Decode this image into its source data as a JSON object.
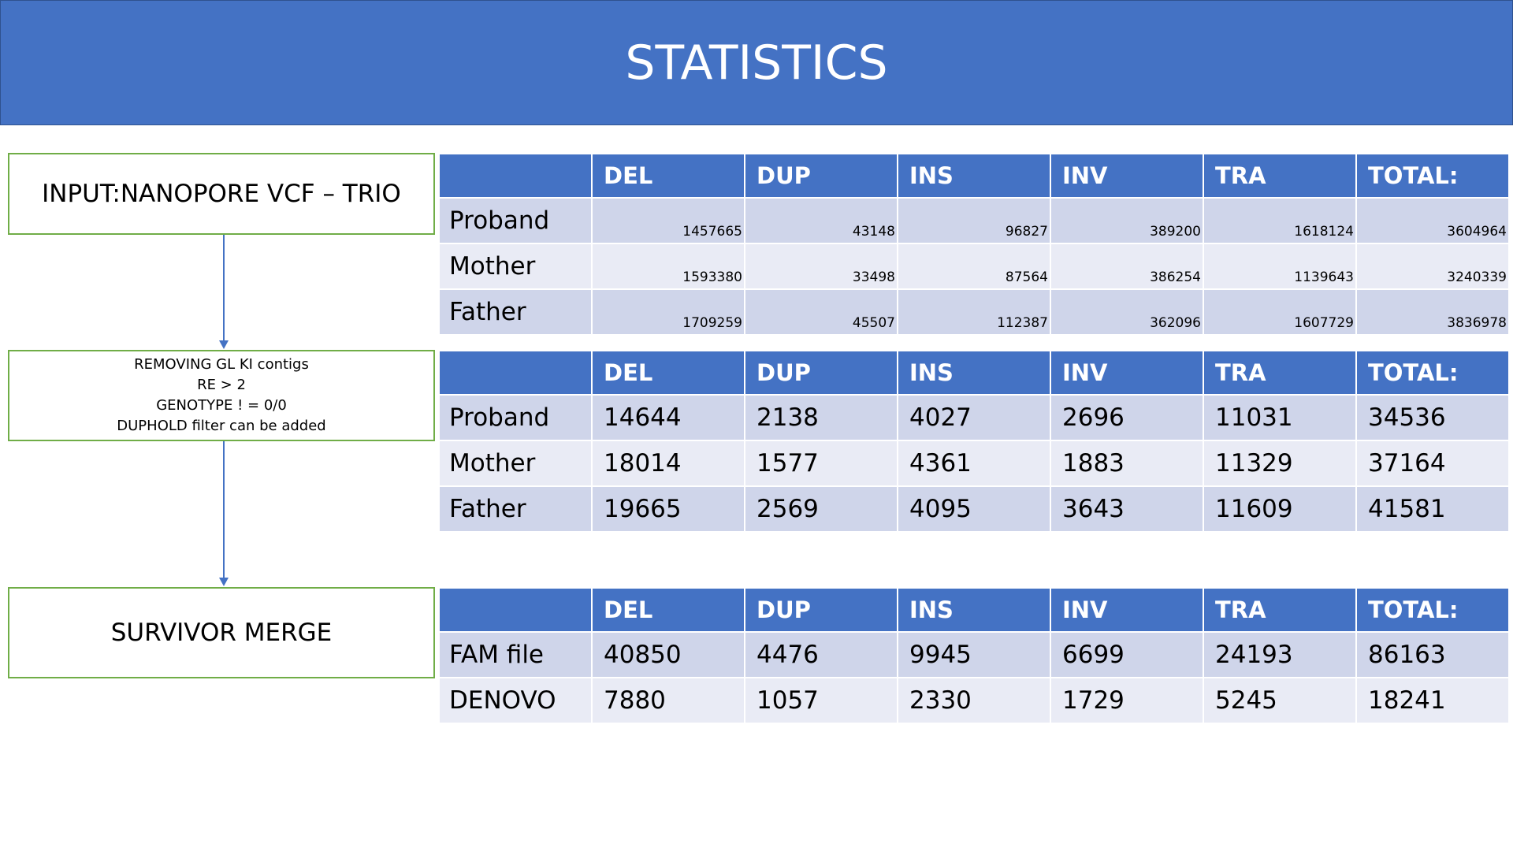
{
  "title": "STATISTICS",
  "flow": {
    "input_label": "INPUT:NANOPORE VCF – TRIO",
    "filter_lines": [
      "REMOVING GL KI contigs",
      "RE > 2",
      "GENOTYPE ! = 0/0",
      "DUPHOLD filter can be added"
    ],
    "merge_label": "SURVIVOR MERGE"
  },
  "tables": [
    {
      "columns": [
        "",
        "DEL",
        "DUP",
        "INS",
        "INV",
        "TRA",
        "TOTAL:"
      ],
      "rows": [
        {
          "label": "Proband",
          "values": [
            "1457665",
            "43148",
            "96827",
            "389200",
            "1618124",
            "3604964"
          ]
        },
        {
          "label": "Mother",
          "values": [
            "1593380",
            "33498",
            "87564",
            "386254",
            "1139643",
            "3240339"
          ]
        },
        {
          "label": "Father",
          "values": [
            "1709259",
            "45507",
            "112387",
            "362096",
            "1607729",
            "3836978"
          ]
        }
      ]
    },
    {
      "columns": [
        "",
        "DEL",
        "DUP",
        "INS",
        "INV",
        "TRA",
        "TOTAL:"
      ],
      "rows": [
        {
          "label": "Proband",
          "values": [
            "14644",
            "2138",
            "4027",
            "2696",
            "11031",
            "34536"
          ]
        },
        {
          "label": "Mother",
          "values": [
            "18014",
            "1577",
            "4361",
            "1883",
            "11329",
            "37164"
          ]
        },
        {
          "label": "Father",
          "values": [
            "19665",
            "2569",
            "4095",
            "3643",
            "11609",
            "41581"
          ]
        }
      ]
    },
    {
      "columns": [
        "",
        "DEL",
        "DUP",
        "INS",
        "INV",
        "TRA",
        "TOTAL:"
      ],
      "rows": [
        {
          "label": "FAM file",
          "values": [
            "40850",
            "4476",
            "9945",
            "6699",
            "24193",
            "86163"
          ]
        },
        {
          "label": "DENOVO",
          "values": [
            "7880",
            "1057",
            "2330",
            "1729",
            "5245",
            "18241"
          ]
        }
      ]
    }
  ],
  "colors": {
    "header_blue": "#4472c4",
    "row_dark": "#cfd5ea",
    "row_light": "#e9ebf5",
    "flow_border": "#70ad47"
  }
}
